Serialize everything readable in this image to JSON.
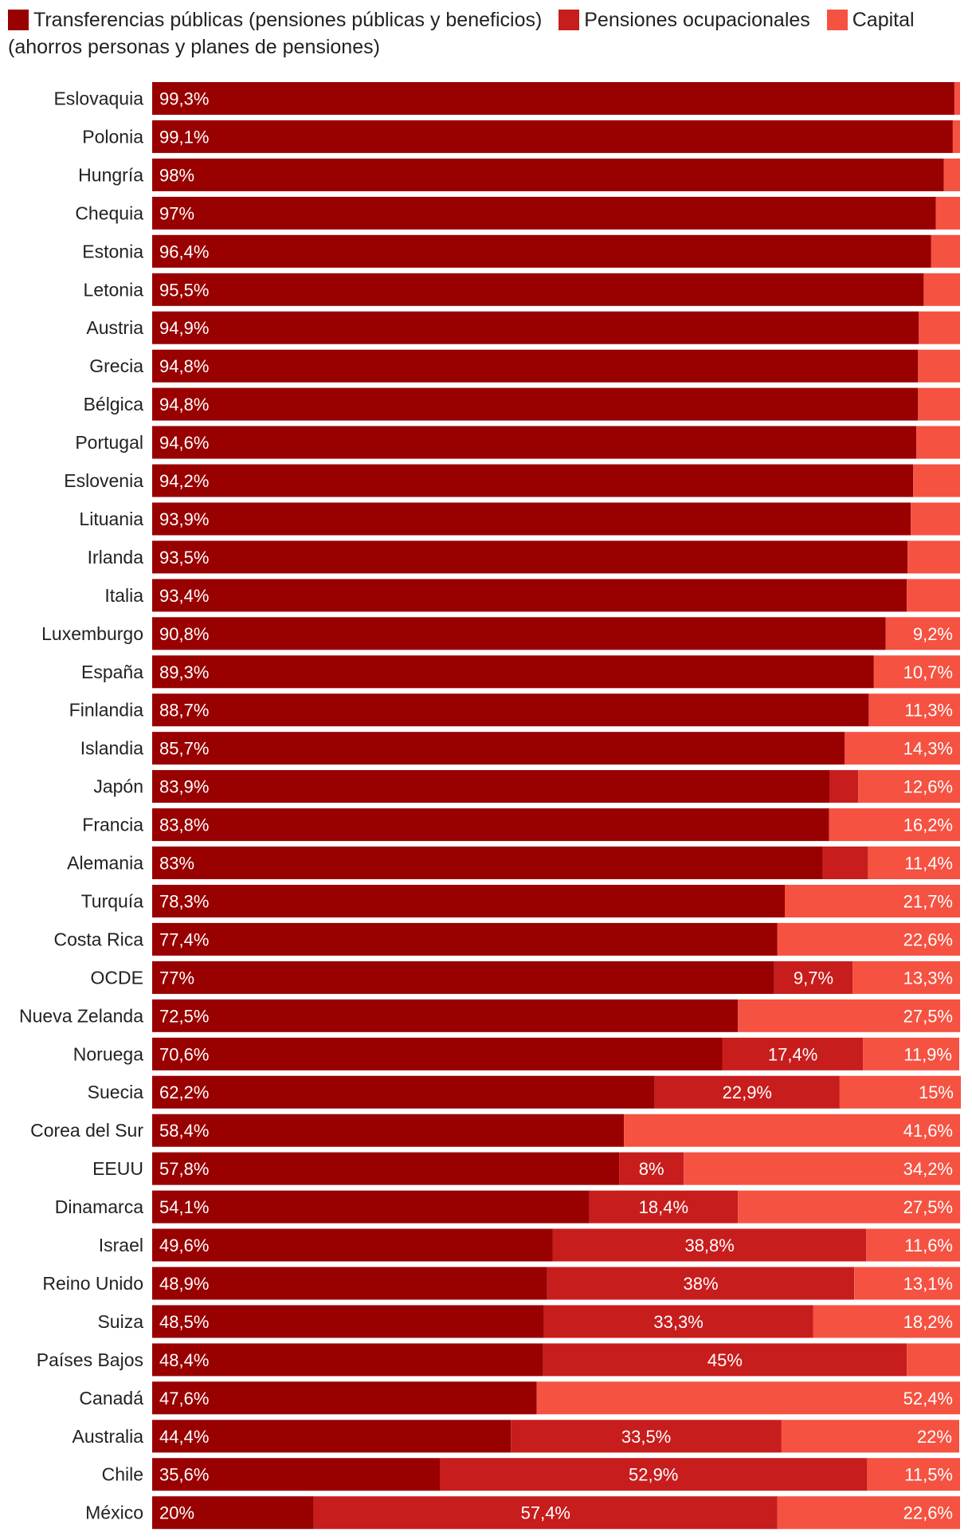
{
  "chart_data": {
    "type": "bar",
    "orientation": "horizontal",
    "stacked": true,
    "legend": "top",
    "series": [
      {
        "name": "Transferencias públicas (pensiones públicas y beneficios)",
        "color": "#990000",
        "values": [
          99.3,
          99.1,
          98,
          97,
          96.4,
          95.5,
          94.9,
          94.8,
          94.8,
          94.6,
          94.2,
          93.9,
          93.5,
          93.4,
          90.8,
          89.3,
          88.7,
          85.7,
          83.9,
          83.8,
          83,
          78.3,
          77.4,
          77,
          72.5,
          70.6,
          62.2,
          58.4,
          57.8,
          54.1,
          49.6,
          48.9,
          48.5,
          48.4,
          47.6,
          44.4,
          35.6,
          20
        ],
        "labels": [
          "99,3%",
          "99,1%",
          "98%",
          "97%",
          "96,4%",
          "95,5%",
          "94,9%",
          "94,8%",
          "94,8%",
          "94,6%",
          "94,2%",
          "93,9%",
          "93,5%",
          "93,4%",
          "90,8%",
          "89,3%",
          "88,7%",
          "85,7%",
          "83,9%",
          "83,8%",
          "83%",
          "78,3%",
          "77,4%",
          "77%",
          "72,5%",
          "70,6%",
          "62,2%",
          "58,4%",
          "57,8%",
          "54,1%",
          "49,6%",
          "48,9%",
          "48,5%",
          "48,4%",
          "47,6%",
          "44,4%",
          "35,6%",
          "20%"
        ]
      },
      {
        "name": "Pensiones ocupacionales",
        "color": "#c81d1d",
        "values": [
          0,
          0,
          0,
          0,
          0,
          0,
          0,
          0,
          0,
          0,
          0,
          0,
          0,
          0,
          0,
          0,
          0,
          0,
          3.5,
          0,
          5.6,
          0,
          0,
          9.7,
          0,
          17.4,
          22.9,
          0,
          8,
          18.4,
          38.8,
          38,
          33.3,
          45,
          0,
          33.5,
          52.9,
          57.4
        ],
        "labels": [
          "",
          "",
          "",
          "",
          "",
          "",
          "",
          "",
          "",
          "",
          "",
          "",
          "",
          "",
          "",
          "",
          "",
          "",
          "",
          "",
          "",
          "",
          "",
          "9,7%",
          "",
          "17,4%",
          "22,9%",
          "",
          "8%",
          "18,4%",
          "38,8%",
          "38%",
          "33,3%",
          "45%",
          "",
          "33,5%",
          "52,9%",
          "57,4%"
        ]
      },
      {
        "name": "Capital",
        "color": "#f55242",
        "values": [
          0.7,
          0.9,
          2,
          3,
          3.6,
          4.5,
          5.1,
          5.2,
          5.2,
          5.4,
          5.8,
          6.1,
          6.5,
          6.6,
          9.2,
          10.7,
          11.3,
          14.3,
          12.6,
          16.2,
          11.4,
          21.7,
          22.6,
          13.3,
          27.5,
          11.9,
          15,
          41.6,
          34.2,
          27.5,
          11.6,
          13.1,
          18.2,
          6.6,
          52.4,
          22,
          11.5,
          22.6
        ],
        "labels": [
          "",
          "",
          "",
          "",
          "",
          "",
          "",
          "",
          "",
          "",
          "",
          "",
          "",
          "",
          "9,2%",
          "10,7%",
          "11,3%",
          "14,3%",
          "12,6%",
          "16,2%",
          "11,4%",
          "21,7%",
          "22,6%",
          "13,3%",
          "27,5%",
          "11,9%",
          "15%",
          "41,6%",
          "34,2%",
          "27,5%",
          "11,6%",
          "13,1%",
          "18,2%",
          "",
          "52,4%",
          "22%",
          "11,5%",
          "22,6%"
        ]
      }
    ],
    "categories": [
      "Eslovaquia",
      "Polonia",
      "Hungría",
      "Chequia",
      "Estonia",
      "Letonia",
      "Austria",
      "Grecia",
      "Bélgica",
      "Portugal",
      "Eslovenia",
      "Lituania",
      "Irlanda",
      "Italia",
      "Luxemburgo",
      "España",
      "Finlandia",
      "Islandia",
      "Japón",
      "Francia",
      "Alemania",
      "Turquía",
      "Costa Rica",
      "OCDE",
      "Nueva Zelanda",
      "Noruega",
      "Suecia",
      "Corea del Sur",
      "EEUU",
      "Dinamarca",
      "Israel",
      "Reino Unido",
      "Suiza",
      "Países Bajos",
      "Canadá",
      "Australia",
      "Chile",
      "México"
    ],
    "xlim": [
      0,
      100
    ],
    "xlabel": "",
    "ylabel": ""
  }
}
